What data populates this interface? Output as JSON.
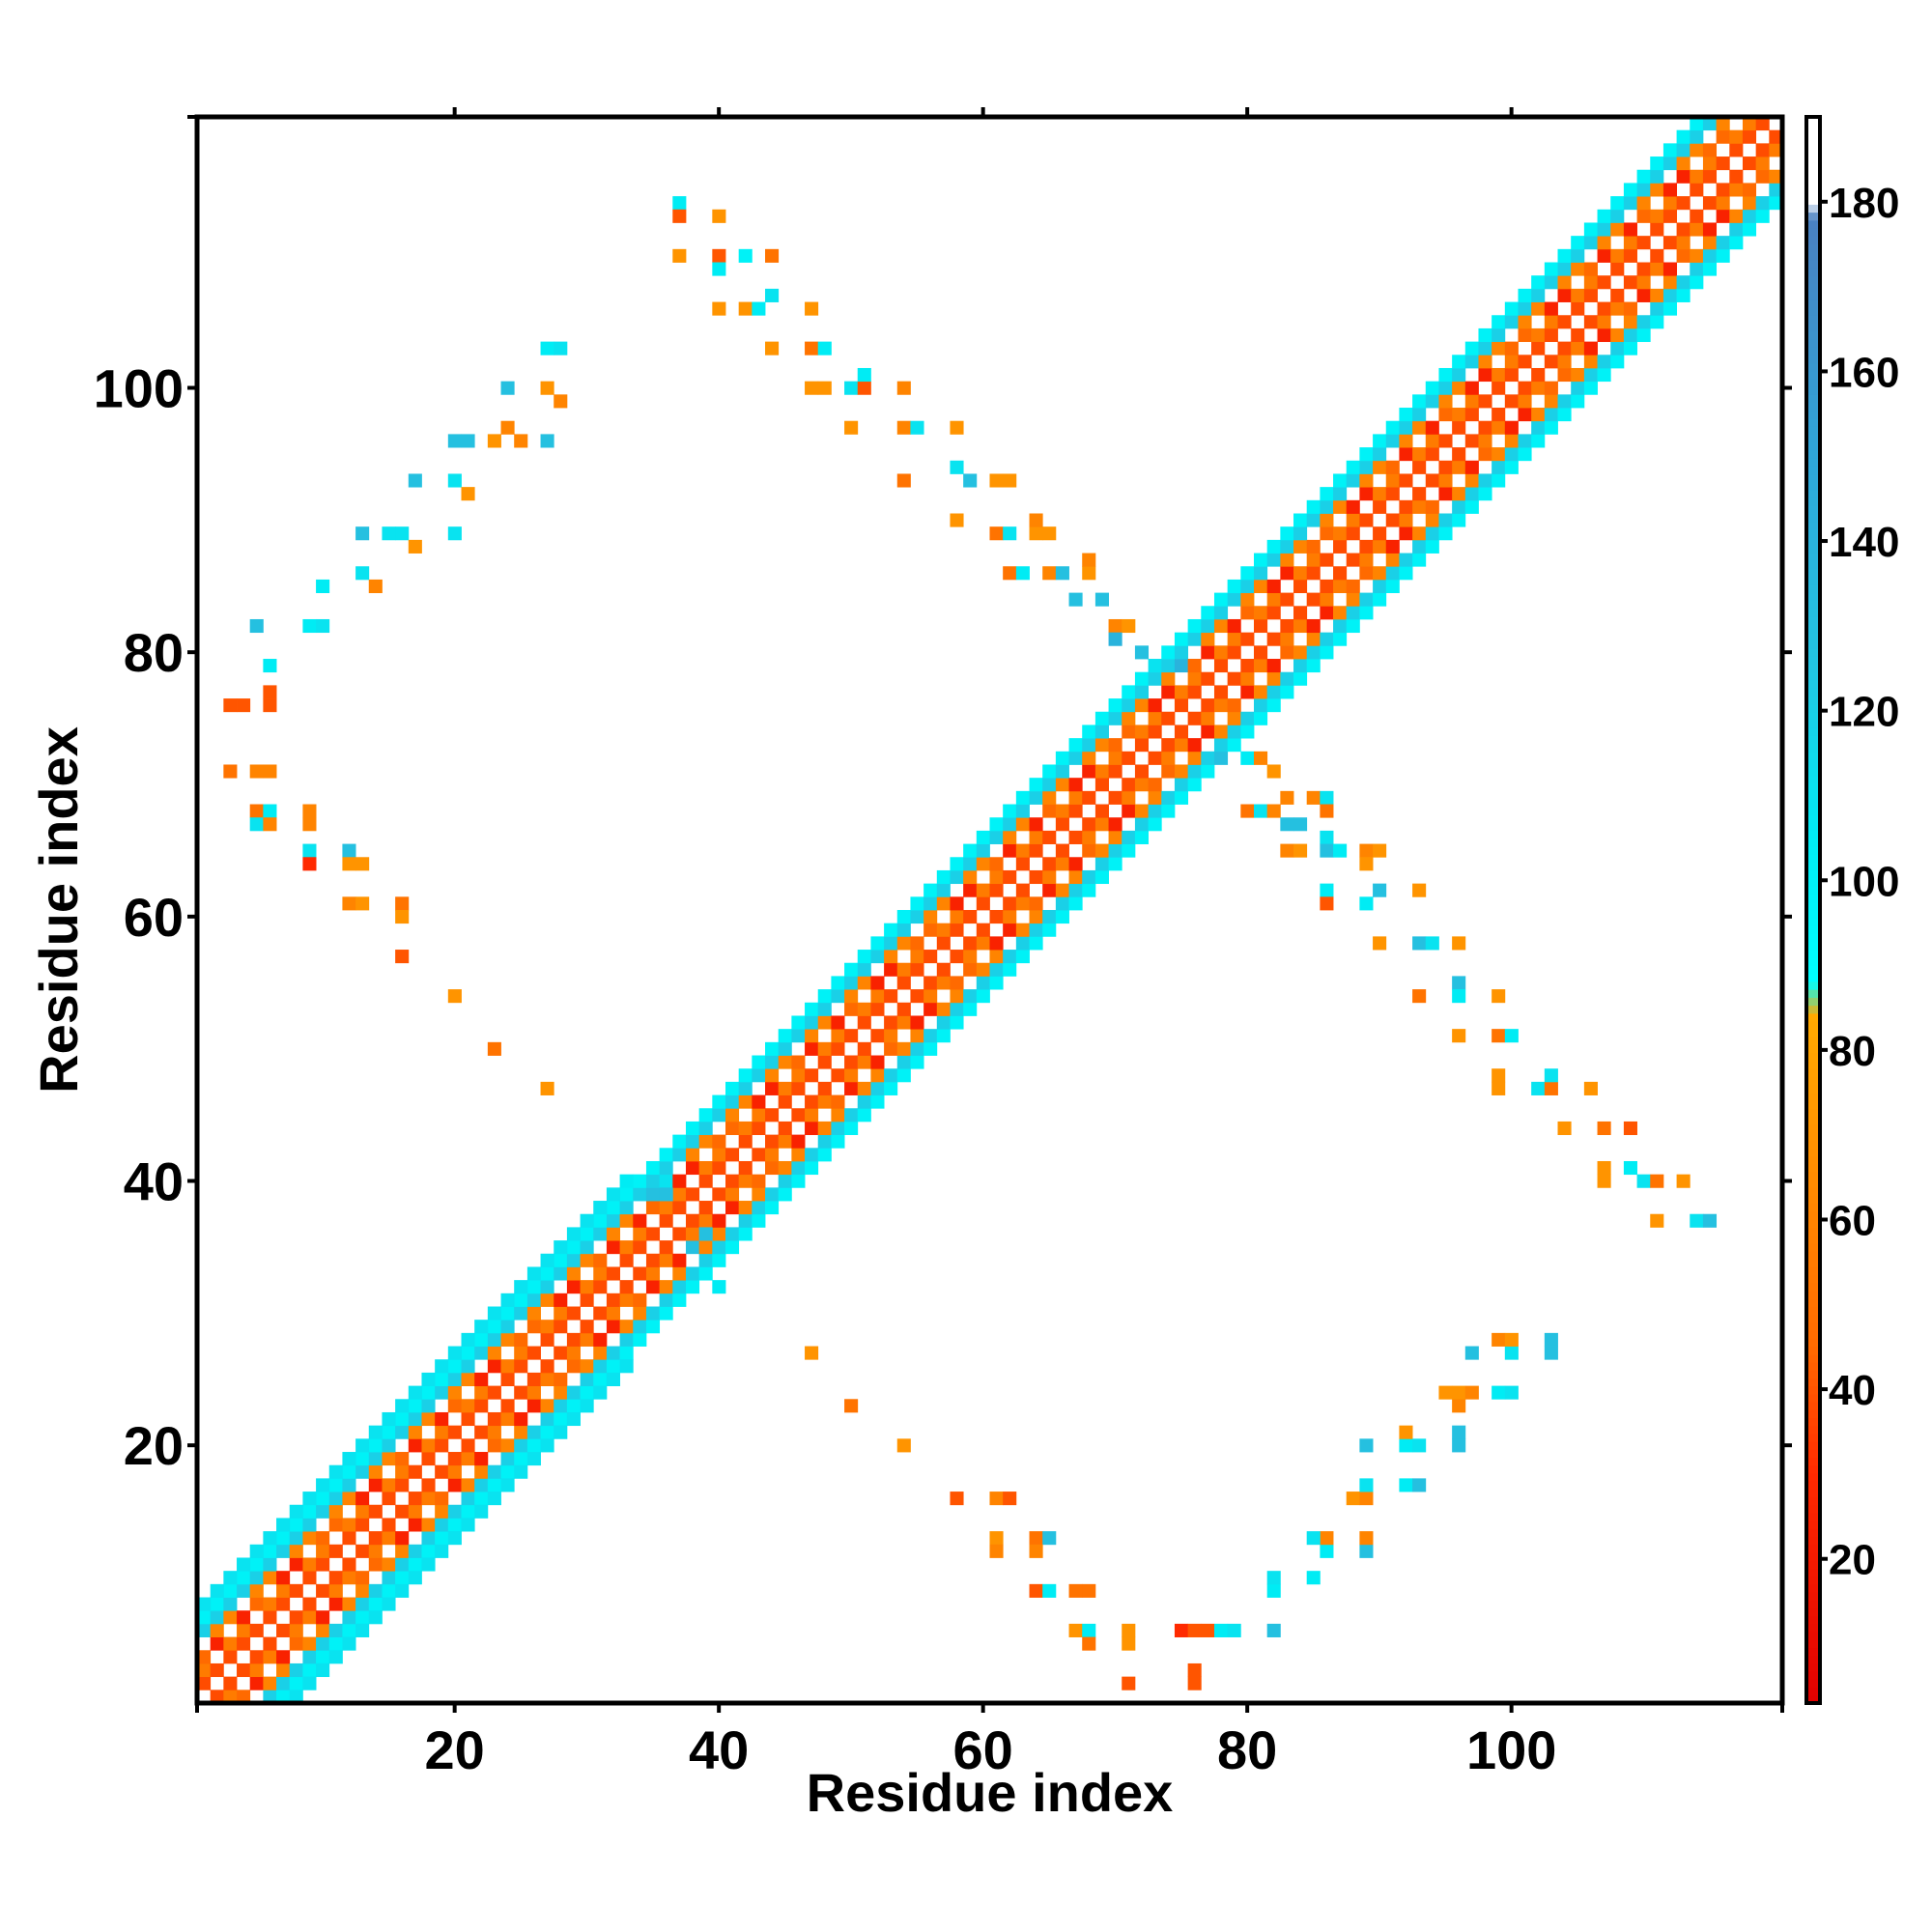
{
  "chart_data": {
    "type": "heatmap",
    "title": "",
    "xlabel": "Residue index",
    "ylabel": "Residue index",
    "xlim": [
      1,
      120
    ],
    "ylim": [
      1,
      120
    ],
    "x_ticks": [
      20,
      40,
      60,
      80,
      100
    ],
    "y_ticks": [
      20,
      40,
      60,
      80,
      100
    ],
    "colorbar": {
      "range": [
        3,
        190
      ],
      "ticks": [
        20,
        40,
        60,
        80,
        100,
        120,
        140,
        160,
        180
      ]
    },
    "colors": {
      "very_close": "#ff2200",
      "close": "#ff6a00",
      "mid": "#ffa200",
      "far": "#00e5f0",
      "farther": "#29b4dd",
      "farthest": "#4b7fc0",
      "frame": "#000000"
    },
    "diagonal_bands": [
      {
        "x_start": 1,
        "x_end": 120,
        "half_width": 6
      },
      {
        "x_start": 1,
        "x_end": 33,
        "half_width": 7
      },
      {
        "x_start": 40,
        "x_end": 70,
        "half_width": 6
      },
      {
        "x_start": 80,
        "x_end": 120,
        "half_width": 6
      }
    ],
    "contacts": [
      [
        37,
        114,
        105
      ],
      [
        37,
        113,
        40
      ],
      [
        40,
        113,
        70
      ],
      [
        37,
        110,
        70
      ],
      [
        40,
        110,
        40
      ],
      [
        42,
        110,
        100
      ],
      [
        40,
        109,
        105
      ],
      [
        44,
        110,
        50
      ],
      [
        40,
        106,
        70
      ],
      [
        42,
        106,
        70
      ],
      [
        43,
        106,
        105
      ],
      [
        44,
        107,
        110
      ],
      [
        47,
        106,
        70
      ],
      [
        44,
        103,
        70
      ],
      [
        47,
        103,
        50
      ],
      [
        48,
        103,
        105
      ],
      [
        47,
        100,
        70
      ],
      [
        48,
        100,
        70
      ],
      [
        50,
        100,
        110
      ],
      [
        51,
        100,
        40
      ],
      [
        51,
        101,
        105
      ],
      [
        54,
        100,
        60
      ],
      [
        50,
        97,
        70
      ],
      [
        54,
        97,
        60
      ],
      [
        55,
        97,
        110
      ],
      [
        58,
        97,
        70
      ],
      [
        54,
        93,
        50
      ],
      [
        58,
        94,
        110
      ],
      [
        59,
        93,
        130
      ],
      [
        61,
        93,
        70
      ],
      [
        62,
        93,
        70
      ],
      [
        58,
        90,
        70
      ],
      [
        61,
        89,
        50
      ],
      [
        62,
        89,
        110
      ],
      [
        64,
        89,
        70
      ],
      [
        64,
        90,
        60
      ],
      [
        65,
        89,
        70
      ],
      [
        62,
        86,
        50
      ],
      [
        63,
        86,
        105
      ],
      [
        65,
        86,
        60
      ],
      [
        66,
        86,
        130
      ],
      [
        68,
        86,
        70
      ],
      [
        68,
        87,
        60
      ],
      [
        67,
        84,
        130
      ],
      [
        69,
        84,
        130
      ],
      [
        70,
        82,
        60
      ],
      [
        71,
        82,
        70
      ],
      [
        70,
        81,
        140
      ],
      [
        72,
        80,
        130
      ],
      [
        73,
        79,
        110
      ],
      [
        75,
        79,
        140
      ],
      [
        3,
        76,
        40
      ],
      [
        4,
        76,
        40
      ],
      [
        6,
        76,
        40
      ],
      [
        6,
        77,
        40
      ],
      [
        6,
        79,
        105
      ],
      [
        5,
        82,
        130
      ],
      [
        9,
        82,
        105
      ],
      [
        10,
        82,
        110
      ],
      [
        10,
        85,
        105
      ],
      [
        13,
        86,
        110
      ],
      [
        14,
        85,
        60
      ],
      [
        13,
        89,
        130
      ],
      [
        15,
        89,
        110
      ],
      [
        16,
        89,
        110
      ],
      [
        17,
        88,
        70
      ],
      [
        20,
        89,
        110
      ],
      [
        17,
        93,
        130
      ],
      [
        20,
        93,
        110
      ],
      [
        21,
        92,
        70
      ],
      [
        20,
        96,
        130
      ],
      [
        21,
        96,
        130
      ],
      [
        23,
        96,
        70
      ],
      [
        24,
        97,
        60
      ],
      [
        25,
        96,
        60
      ],
      [
        24,
        100,
        130
      ],
      [
        27,
        100,
        70
      ],
      [
        28,
        99,
        60
      ],
      [
        27,
        96,
        130
      ],
      [
        27,
        103,
        105
      ],
      [
        28,
        103,
        110
      ],
      [
        3,
        71,
        50
      ],
      [
        5,
        71,
        60
      ],
      [
        6,
        71,
        60
      ],
      [
        5,
        68,
        50
      ],
      [
        6,
        68,
        105
      ],
      [
        9,
        68,
        60
      ],
      [
        5,
        67,
        110
      ],
      [
        6,
        67,
        60
      ],
      [
        9,
        67,
        60
      ],
      [
        9,
        65,
        110
      ],
      [
        9,
        64,
        30
      ],
      [
        12,
        65,
        130
      ],
      [
        12,
        64,
        70
      ],
      [
        13,
        64,
        70
      ],
      [
        12,
        61,
        60
      ],
      [
        13,
        61,
        70
      ],
      [
        16,
        61,
        50
      ],
      [
        16,
        60,
        70
      ],
      [
        16,
        57,
        40
      ],
      [
        20,
        54,
        70
      ],
      [
        23,
        50,
        50
      ],
      [
        27,
        47,
        70
      ],
      [
        78,
        72,
        130
      ],
      [
        80,
        72,
        105
      ],
      [
        81,
        72,
        60
      ],
      [
        82,
        71,
        70
      ],
      [
        80,
        68,
        50
      ],
      [
        81,
        68,
        110
      ],
      [
        82,
        68,
        60
      ],
      [
        83,
        69,
        60
      ],
      [
        83,
        67,
        130
      ],
      [
        84,
        67,
        130
      ],
      [
        85,
        69,
        60
      ],
      [
        86,
        69,
        110
      ],
      [
        86,
        68,
        50
      ],
      [
        86,
        66,
        110
      ],
      [
        86,
        65,
        130
      ],
      [
        87,
        65,
        105
      ],
      [
        83,
        65,
        60
      ],
      [
        84,
        65,
        70
      ],
      [
        89,
        65,
        60
      ],
      [
        90,
        65,
        70
      ],
      [
        89,
        64,
        70
      ],
      [
        86,
        62,
        105
      ],
      [
        86,
        61,
        40
      ],
      [
        89,
        61,
        105
      ],
      [
        90,
        62,
        130
      ],
      [
        93,
        62,
        70
      ],
      [
        90,
        58,
        70
      ],
      [
        93,
        58,
        130
      ],
      [
        94,
        58,
        110
      ],
      [
        96,
        58,
        70
      ],
      [
        93,
        54,
        50
      ],
      [
        96,
        55,
        130
      ],
      [
        96,
        54,
        105
      ],
      [
        99,
        54,
        70
      ],
      [
        96,
        51,
        70
      ],
      [
        99,
        51,
        50
      ],
      [
        100,
        51,
        105
      ],
      [
        99,
        48,
        70
      ],
      [
        99,
        47,
        70
      ],
      [
        102,
        47,
        110
      ],
      [
        103,
        47,
        50
      ],
      [
        103,
        48,
        110
      ],
      [
        106,
        47,
        70
      ],
      [
        104,
        44,
        70
      ],
      [
        107,
        44,
        50
      ],
      [
        109,
        44,
        40
      ],
      [
        107,
        41,
        70
      ],
      [
        107,
        40,
        70
      ],
      [
        109,
        41,
        105
      ],
      [
        110,
        40,
        110
      ],
      [
        111,
        40,
        50
      ],
      [
        113,
        40,
        70
      ],
      [
        111,
        37,
        70
      ],
      [
        114,
        37,
        110
      ],
      [
        115,
        37,
        130
      ],
      [
        36,
        40,
        110
      ],
      [
        33,
        40,
        105
      ],
      [
        40,
        32,
        105
      ],
      [
        39,
        36,
        130
      ],
      [
        38,
        35,
        130
      ],
      [
        36,
        39,
        130
      ],
      [
        35,
        39,
        130
      ],
      [
        47,
        27,
        70
      ],
      [
        50,
        23,
        50
      ],
      [
        54,
        20,
        70
      ],
      [
        58,
        16,
        40
      ],
      [
        61,
        16,
        60
      ],
      [
        62,
        16,
        40
      ],
      [
        61,
        13,
        70
      ],
      [
        61,
        12,
        60
      ],
      [
        64,
        13,
        50
      ],
      [
        65,
        13,
        130
      ],
      [
        64,
        12,
        60
      ],
      [
        64,
        9,
        40
      ],
      [
        65,
        9,
        105
      ],
      [
        67,
        9,
        50
      ],
      [
        68,
        9,
        50
      ],
      [
        67,
        6,
        70
      ],
      [
        68,
        6,
        105
      ],
      [
        68,
        5,
        50
      ],
      [
        71,
        6,
        70
      ],
      [
        71,
        5,
        70
      ],
      [
        71,
        2,
        40
      ],
      [
        76,
        3,
        40
      ],
      [
        76,
        2,
        40
      ],
      [
        75,
        6,
        30
      ],
      [
        76,
        6,
        40
      ],
      [
        77,
        6,
        40
      ],
      [
        78,
        6,
        105
      ],
      [
        79,
        6,
        110
      ],
      [
        82,
        6,
        130
      ],
      [
        82,
        9,
        105
      ],
      [
        82,
        10,
        110
      ],
      [
        85,
        10,
        105
      ],
      [
        86,
        12,
        105
      ],
      [
        86,
        13,
        60
      ],
      [
        85,
        13,
        110
      ],
      [
        89,
        12,
        130
      ],
      [
        89,
        13,
        60
      ],
      [
        88,
        16,
        70
      ],
      [
        89,
        16,
        60
      ],
      [
        89,
        17,
        110
      ],
      [
        89,
        20,
        130
      ],
      [
        92,
        17,
        105
      ],
      [
        93,
        17,
        130
      ],
      [
        92,
        20,
        105
      ],
      [
        92,
        21,
        70
      ],
      [
        93,
        20,
        110
      ],
      [
        96,
        20,
        130
      ],
      [
        96,
        21,
        130
      ],
      [
        96,
        23,
        60
      ],
      [
        96,
        24,
        70
      ],
      [
        97,
        24,
        60
      ],
      [
        95,
        24,
        70
      ],
      [
        97,
        27,
        130
      ],
      [
        99,
        24,
        105
      ],
      [
        100,
        24,
        110
      ],
      [
        100,
        27,
        110
      ],
      [
        99,
        28,
        60
      ],
      [
        100,
        28,
        70
      ],
      [
        103,
        27,
        130
      ],
      [
        103,
        28,
        130
      ]
    ]
  }
}
